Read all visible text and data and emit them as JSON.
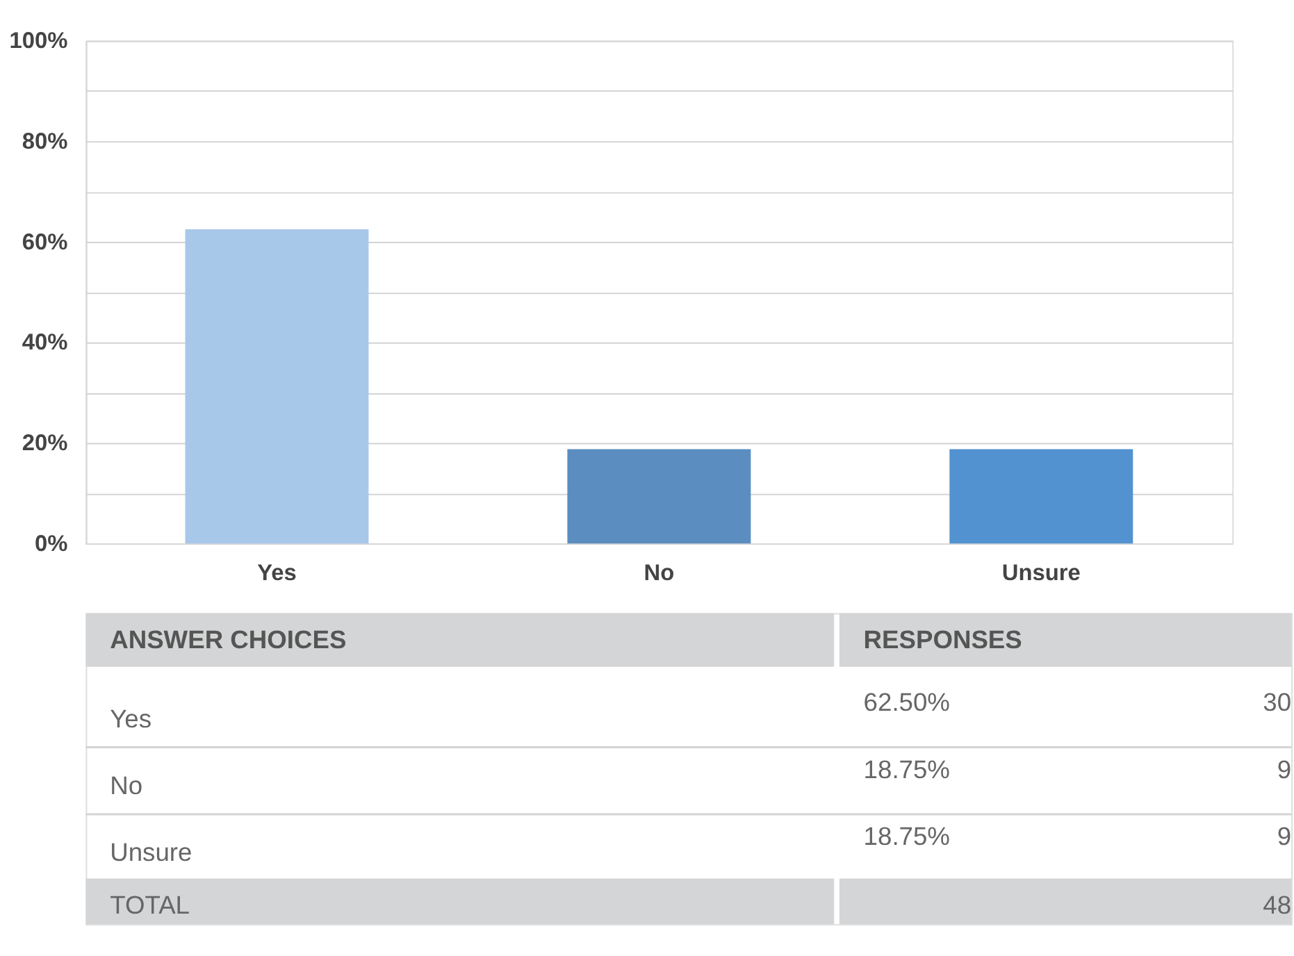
{
  "chart_data": {
    "type": "bar",
    "categories": [
      "Yes",
      "No",
      "Unsure"
    ],
    "values": [
      62.5,
      18.75,
      18.75
    ],
    "colors": [
      "#a8c8ea",
      "#5b8dc0",
      "#5392d0"
    ],
    "ylim": [
      0,
      100
    ],
    "yticks": [
      {
        "value": 0,
        "label": "0%"
      },
      {
        "value": 10,
        "label": null
      },
      {
        "value": 20,
        "label": "20%"
      },
      {
        "value": 30,
        "label": null
      },
      {
        "value": 40,
        "label": "40%"
      },
      {
        "value": 50,
        "label": null
      },
      {
        "value": 60,
        "label": "60%"
      },
      {
        "value": 70,
        "label": null
      },
      {
        "value": 80,
        "label": "80%"
      },
      {
        "value": 90,
        "label": null
      },
      {
        "value": 100,
        "label": "100%"
      }
    ],
    "grid": "y",
    "legend": false,
    "annotations": [
      "ANSWER CHOICES",
      "RESPONSES",
      "62.50%",
      "18.75%",
      "18.75%",
      "30",
      "9",
      "9",
      "TOTAL",
      "48"
    ]
  }
}
